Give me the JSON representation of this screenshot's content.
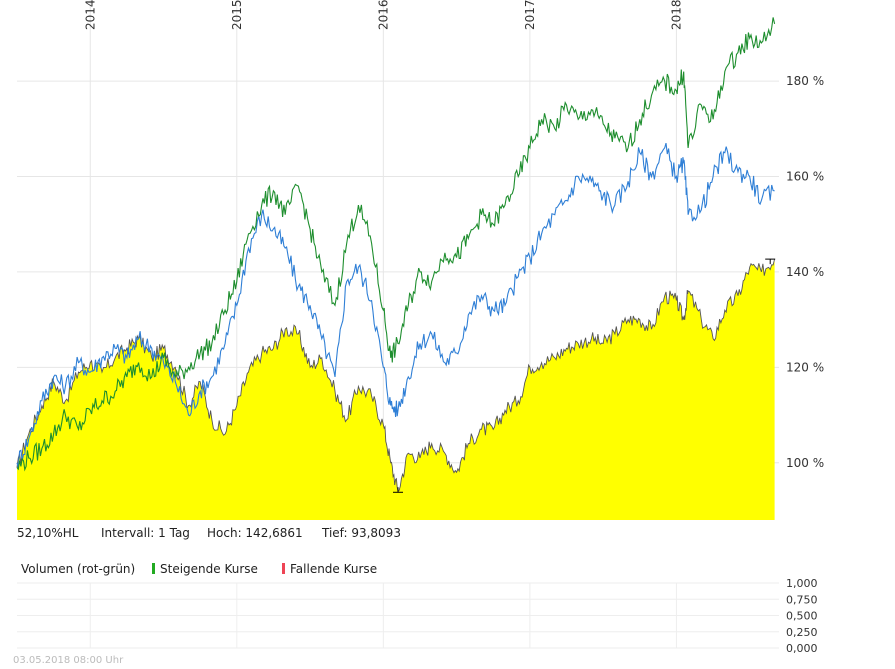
{
  "chart_data": {
    "type": "area",
    "x_ticks": [
      "2014",
      "2015",
      "2016",
      "2017",
      "2018"
    ],
    "y_ticks": [
      "100 %",
      "120 %",
      "140 %",
      "160 %",
      "180 %"
    ],
    "ylim": [
      88,
      197
    ],
    "xlim": [
      2013.5,
      2018.7
    ],
    "grid": true,
    "series": [
      {
        "color": "#ffff00",
        "fill": true,
        "points": [
          [
            2013.5,
            99
          ],
          [
            2013.58,
            106
          ],
          [
            2013.67,
            112
          ],
          [
            2013.75,
            117
          ],
          [
            2013.83,
            113
          ],
          [
            2013.92,
            119
          ],
          [
            2014.0,
            121
          ],
          [
            2014.08,
            119
          ],
          [
            2014.17,
            122
          ],
          [
            2014.25,
            124
          ],
          [
            2014.33,
            126
          ],
          [
            2014.42,
            122
          ],
          [
            2014.5,
            124
          ],
          [
            2014.58,
            120
          ],
          [
            2014.67,
            112
          ],
          [
            2014.75,
            117
          ],
          [
            2014.83,
            109
          ],
          [
            2014.92,
            106
          ],
          [
            2015.0,
            112
          ],
          [
            2015.08,
            119
          ],
          [
            2015.17,
            123
          ],
          [
            2015.25,
            124
          ],
          [
            2015.33,
            128
          ],
          [
            2015.42,
            127
          ],
          [
            2015.5,
            120
          ],
          [
            2015.58,
            122
          ],
          [
            2015.67,
            115
          ],
          [
            2015.75,
            109
          ],
          [
            2015.83,
            116
          ],
          [
            2015.92,
            114
          ],
          [
            2016.0,
            108
          ],
          [
            2016.05,
            100
          ],
          [
            2016.1,
            94
          ],
          [
            2016.17,
            102
          ],
          [
            2016.25,
            101
          ],
          [
            2016.33,
            104
          ],
          [
            2016.42,
            102
          ],
          [
            2016.5,
            98
          ],
          [
            2016.58,
            104
          ],
          [
            2016.67,
            107
          ],
          [
            2016.75,
            107
          ],
          [
            2016.83,
            111
          ],
          [
            2016.92,
            113
          ],
          [
            2017.0,
            120
          ],
          [
            2017.08,
            121
          ],
          [
            2017.17,
            122
          ],
          [
            2017.25,
            124
          ],
          [
            2017.33,
            125
          ],
          [
            2017.42,
            126
          ],
          [
            2017.5,
            125
          ],
          [
            2017.58,
            127
          ],
          [
            2017.67,
            130
          ],
          [
            2017.75,
            130
          ],
          [
            2017.83,
            128
          ],
          [
            2017.92,
            135
          ],
          [
            2018.0,
            134
          ],
          [
            2018.05,
            130
          ],
          [
            2018.08,
            136
          ],
          [
            2018.17,
            130
          ],
          [
            2018.25,
            126
          ],
          [
            2018.33,
            132
          ],
          [
            2018.42,
            135
          ],
          [
            2018.5,
            141
          ],
          [
            2018.58,
            140
          ],
          [
            2018.67,
            142.7
          ]
        ]
      },
      {
        "color": "#2f7fd6",
        "fill": false,
        "points": [
          [
            2013.5,
            100
          ],
          [
            2013.58,
            105
          ],
          [
            2013.67,
            113
          ],
          [
            2013.75,
            118
          ],
          [
            2013.83,
            116
          ],
          [
            2013.92,
            121
          ],
          [
            2014.0,
            119
          ],
          [
            2014.08,
            122
          ],
          [
            2014.17,
            124
          ],
          [
            2014.25,
            122
          ],
          [
            2014.33,
            126
          ],
          [
            2014.42,
            124
          ],
          [
            2014.5,
            121
          ],
          [
            2014.58,
            117
          ],
          [
            2014.67,
            110
          ],
          [
            2014.75,
            115
          ],
          [
            2014.83,
            118
          ],
          [
            2014.92,
            125
          ],
          [
            2015.0,
            133
          ],
          [
            2015.08,
            145
          ],
          [
            2015.17,
            152
          ],
          [
            2015.25,
            149
          ],
          [
            2015.33,
            145
          ],
          [
            2015.42,
            137
          ],
          [
            2015.5,
            133
          ],
          [
            2015.58,
            126
          ],
          [
            2015.67,
            118
          ],
          [
            2015.75,
            138
          ],
          [
            2015.83,
            141
          ],
          [
            2015.92,
            134
          ],
          [
            2016.0,
            120
          ],
          [
            2016.05,
            112
          ],
          [
            2016.1,
            111
          ],
          [
            2016.17,
            118
          ],
          [
            2016.25,
            125
          ],
          [
            2016.33,
            127
          ],
          [
            2016.42,
            121
          ],
          [
            2016.5,
            123
          ],
          [
            2016.58,
            131
          ],
          [
            2016.67,
            135
          ],
          [
            2016.75,
            132
          ],
          [
            2016.83,
            133
          ],
          [
            2016.92,
            139
          ],
          [
            2017.0,
            143
          ],
          [
            2017.08,
            148
          ],
          [
            2017.17,
            152
          ],
          [
            2017.25,
            155
          ],
          [
            2017.33,
            160
          ],
          [
            2017.42,
            159
          ],
          [
            2017.5,
            156
          ],
          [
            2017.58,
            154
          ],
          [
            2017.67,
            159
          ],
          [
            2017.75,
            165
          ],
          [
            2017.83,
            160
          ],
          [
            2017.92,
            166
          ],
          [
            2018.0,
            160
          ],
          [
            2018.05,
            163
          ],
          [
            2018.08,
            152
          ],
          [
            2018.17,
            153
          ],
          [
            2018.25,
            160
          ],
          [
            2018.33,
            165
          ],
          [
            2018.42,
            161
          ],
          [
            2018.5,
            160
          ],
          [
            2018.58,
            155
          ],
          [
            2018.67,
            157
          ]
        ]
      },
      {
        "color": "#1e8e2e",
        "fill": false,
        "points": [
          [
            2013.5,
            99
          ],
          [
            2013.58,
            101
          ],
          [
            2013.67,
            103
          ],
          [
            2013.75,
            106
          ],
          [
            2013.83,
            110
          ],
          [
            2013.92,
            107
          ],
          [
            2014.0,
            111
          ],
          [
            2014.08,
            113
          ],
          [
            2014.17,
            115
          ],
          [
            2014.25,
            118
          ],
          [
            2014.33,
            121
          ],
          [
            2014.42,
            118
          ],
          [
            2014.5,
            122
          ],
          [
            2014.58,
            118
          ],
          [
            2014.67,
            120
          ],
          [
            2014.75,
            123
          ],
          [
            2014.83,
            125
          ],
          [
            2014.92,
            132
          ],
          [
            2015.0,
            138
          ],
          [
            2015.08,
            148
          ],
          [
            2015.17,
            154
          ],
          [
            2015.25,
            157
          ],
          [
            2015.33,
            152
          ],
          [
            2015.42,
            158
          ],
          [
            2015.5,
            149
          ],
          [
            2015.58,
            140
          ],
          [
            2015.67,
            133
          ],
          [
            2015.75,
            146
          ],
          [
            2015.83,
            154
          ],
          [
            2015.92,
            146
          ],
          [
            2016.0,
            132
          ],
          [
            2016.05,
            122
          ],
          [
            2016.1,
            125
          ],
          [
            2016.17,
            133
          ],
          [
            2016.25,
            140
          ],
          [
            2016.33,
            138
          ],
          [
            2016.42,
            144
          ],
          [
            2016.5,
            143
          ],
          [
            2016.58,
            147
          ],
          [
            2016.67,
            152
          ],
          [
            2016.75,
            150
          ],
          [
            2016.83,
            154
          ],
          [
            2016.92,
            160
          ],
          [
            2017.0,
            166
          ],
          [
            2017.08,
            172
          ],
          [
            2017.17,
            170
          ],
          [
            2017.25,
            175
          ],
          [
            2017.33,
            172
          ],
          [
            2017.42,
            174
          ],
          [
            2017.5,
            171
          ],
          [
            2017.58,
            168
          ],
          [
            2017.67,
            166
          ],
          [
            2017.75,
            172
          ],
          [
            2017.83,
            177
          ],
          [
            2017.92,
            180
          ],
          [
            2018.0,
            178
          ],
          [
            2018.05,
            182
          ],
          [
            2018.08,
            166
          ],
          [
            2018.17,
            175
          ],
          [
            2018.25,
            172
          ],
          [
            2018.33,
            182
          ],
          [
            2018.42,
            186
          ],
          [
            2018.5,
            189
          ],
          [
            2018.58,
            188
          ],
          [
            2018.67,
            192
          ]
        ]
      }
    ],
    "markers": {
      "high": {
        "x": 2018.64,
        "y": 142.6861
      },
      "low": {
        "x": 2016.1,
        "y": 93.8093
      }
    }
  },
  "info": {
    "change": "52,10%HL",
    "interval": "Intervall: 1 Tag",
    "high": "Hoch: 142,6861",
    "low": "Tief: 93,8093"
  },
  "volume": {
    "title": "Volumen (rot-grün)",
    "rising_label": "Steigende Kurse",
    "falling_label": "Fallende Kurse",
    "rising_color": "#22aa22",
    "falling_color": "#ee4455",
    "y_ticks": [
      "1,000",
      "0,750",
      "0,500",
      "0,250",
      "0,000"
    ]
  },
  "footer": {
    "timestamp": "03.05.2018 08:00 Uhr"
  }
}
